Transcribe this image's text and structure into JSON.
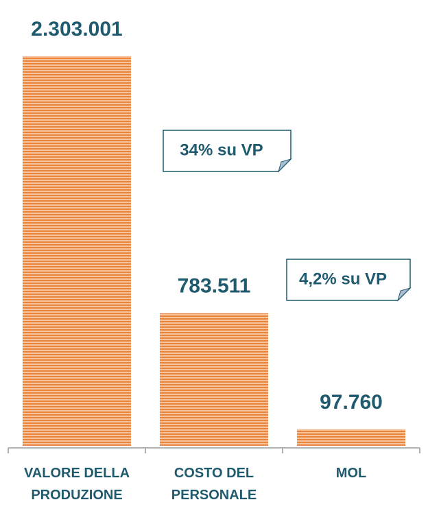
{
  "chart_data": {
    "type": "bar",
    "categories": [
      "VALORE DELLA PRODUZIONE",
      "COSTO DEL PERSONALE",
      "MOL"
    ],
    "values": [
      2303001,
      783511,
      97760
    ],
    "value_labels": [
      "2.303.001",
      "783.511",
      "97.760"
    ],
    "color": "#f4a46a",
    "annotations": [
      {
        "text": "34% su VP"
      },
      {
        "text": "4,2% su VP"
      }
    ]
  }
}
